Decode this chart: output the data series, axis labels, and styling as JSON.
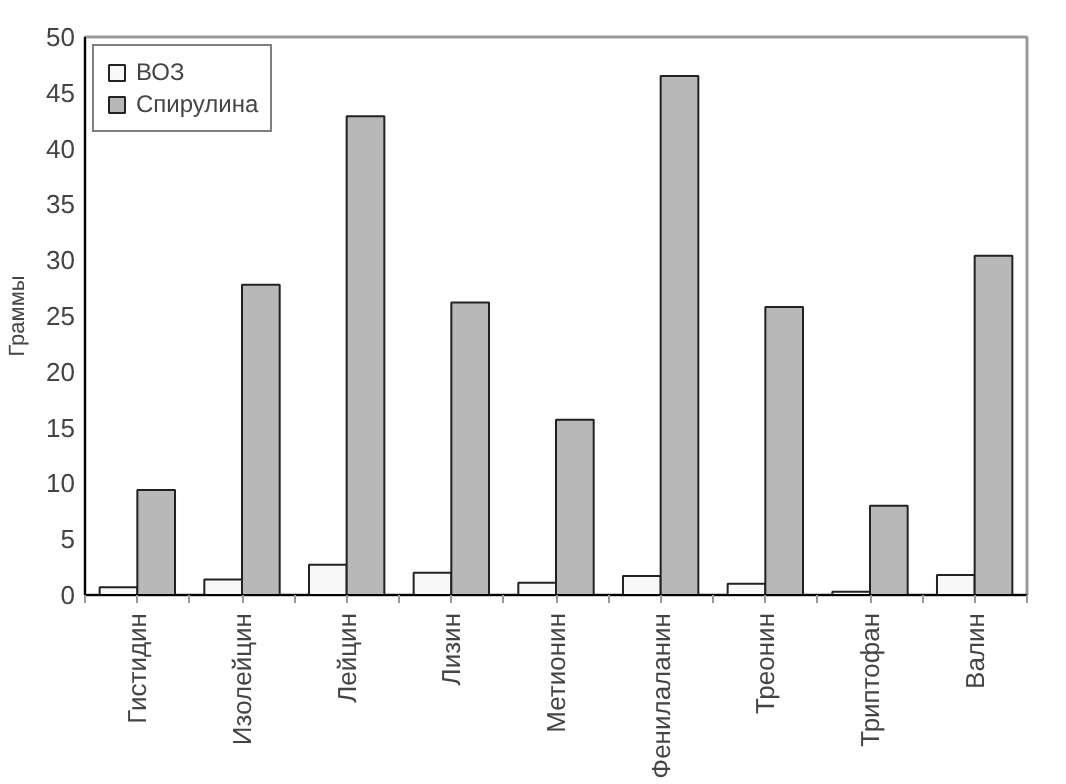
{
  "chart_data": {
    "type": "bar",
    "ylabel": "Граммы",
    "categories": [
      "Гистидин",
      "Изолейцин",
      "Лейцин",
      "Лизин",
      "Метионин",
      "Фенилаланин",
      "Треонин",
      "Триптофан",
      "Валин"
    ],
    "series": [
      {
        "name": "ВОЗ",
        "color": "#f8f8f8",
        "values": [
          0.7,
          1.4,
          2.7,
          2.0,
          1.1,
          1.7,
          1.0,
          0.3,
          1.8
        ]
      },
      {
        "name": "Спирулина",
        "color": "#b8b8b8",
        "values": [
          9.4,
          27.8,
          42.9,
          26.2,
          15.7,
          46.5,
          25.8,
          8.0,
          30.4
        ]
      }
    ],
    "ylim": [
      0,
      50
    ],
    "yticks": [
      0,
      5,
      10,
      15,
      20,
      25,
      30,
      35,
      40,
      45,
      50
    ],
    "grid": false,
    "legend": "top left"
  }
}
